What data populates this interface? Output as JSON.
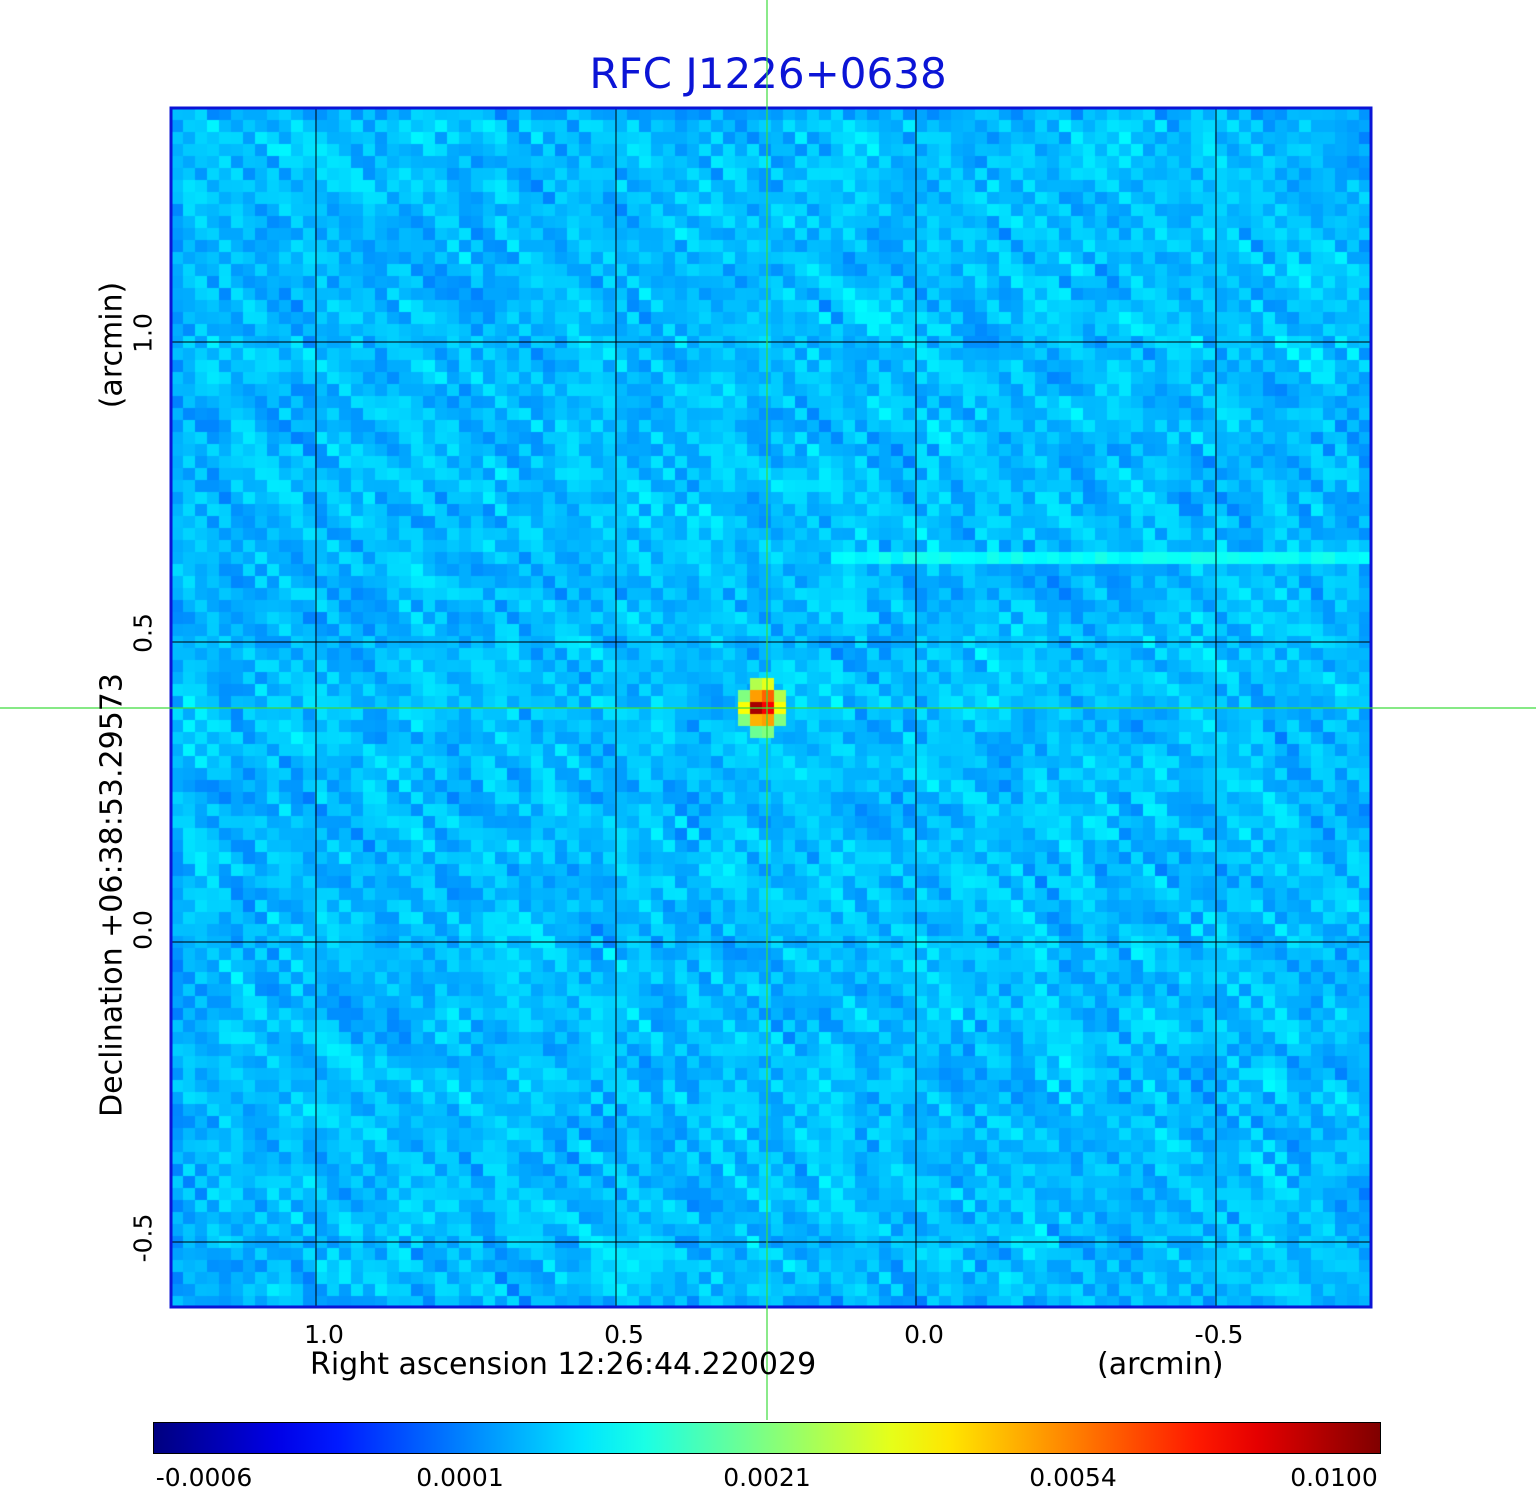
{
  "title": "RFC J1226+0638",
  "x_axis": {
    "label": "Right ascension  12:26:44.220029",
    "unit": "(arcmin)",
    "ticks": [
      "1.0",
      "0.5",
      "0.0",
      "-0.5"
    ]
  },
  "y_axis": {
    "label": "Declination  +06:38:53.29573",
    "unit": "(arcmin)",
    "ticks": [
      "1.0",
      "0.5",
      "0.0",
      "-0.5"
    ]
  },
  "colorbar": {
    "colormap": "jet",
    "ticks": [
      "-0.0006",
      "0.0001",
      "0.0021",
      "0.0054",
      "0.0100"
    ]
  },
  "colors": {
    "title": "#0b14d6",
    "frame": "#0b14d6",
    "crosshair": "#3ddc3d",
    "grid": "#000000"
  }
}
